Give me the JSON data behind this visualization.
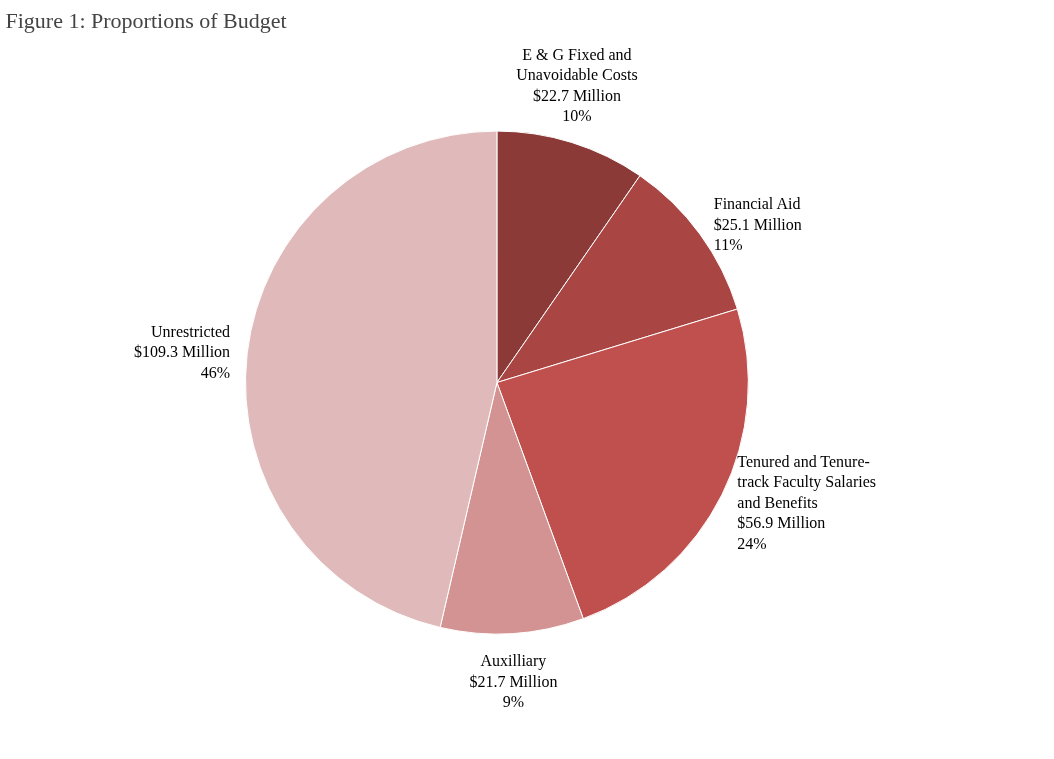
{
  "chart_data": {
    "type": "pie",
    "title": "Figure 1: Proportions of Budget",
    "categories": [
      "E & G Fixed and Unavoidable Costs",
      "Financial Aid",
      "Tenured and Tenure-track Faculty Salaries and Benefits",
      "Auxilliary",
      "Unrestricted"
    ],
    "values": [
      22.7,
      25.1,
      56.9,
      21.7,
      109.3
    ],
    "colors": [
      "#8c3a38",
      "#a94644",
      "#c0504d",
      "#d39392",
      "#e0baba"
    ],
    "value_labels": [
      "$22.7 Million\n10%",
      "$25.1 Million\n11%",
      "$56.9 Million\n24%",
      "$21.7 Million\n9%",
      "$109.3 Million\n46%"
    ],
    "legend": false
  }
}
